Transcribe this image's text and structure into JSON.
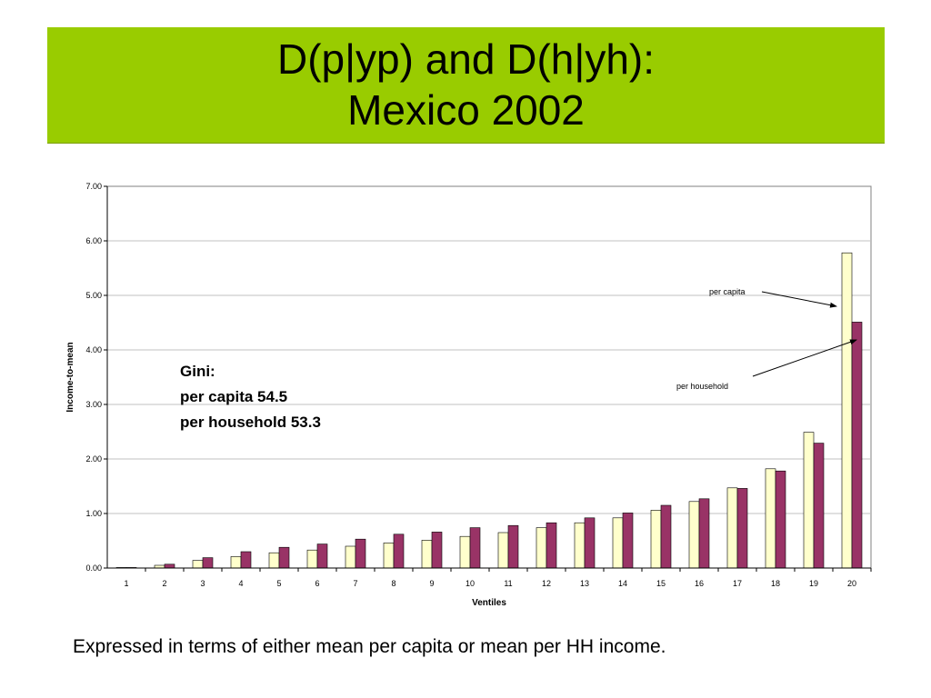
{
  "slide": {
    "title_line1": "D(p|yp) and D(h|yh):",
    "title_line2": "Mexico 2002",
    "caption": "Expressed in terms of either mean per capita or mean per HH income.",
    "colors": {
      "title_bar": "#99cc00"
    }
  },
  "chart_data": {
    "type": "bar",
    "xlabel": "Ventiles",
    "ylabel": "Income-to-mean",
    "ylim": [
      0,
      7
    ],
    "yticks": [
      "0.00",
      "1.00",
      "2.00",
      "3.00",
      "4.00",
      "5.00",
      "6.00",
      "7.00"
    ],
    "categories": [
      "1",
      "2",
      "3",
      "4",
      "5",
      "6",
      "7",
      "8",
      "9",
      "10",
      "11",
      "12",
      "13",
      "14",
      "15",
      "16",
      "17",
      "18",
      "19",
      "20"
    ],
    "grid": true,
    "series": [
      {
        "name": "per capita",
        "color": "#ffffcc",
        "values": [
          0.01,
          0.05,
          0.14,
          0.21,
          0.28,
          0.33,
          0.4,
          0.46,
          0.51,
          0.58,
          0.65,
          0.74,
          0.83,
          0.92,
          1.06,
          1.22,
          1.47,
          1.82,
          2.49,
          5.78
        ]
      },
      {
        "name": "per household",
        "color": "#993366",
        "values": [
          0.01,
          0.07,
          0.19,
          0.3,
          0.38,
          0.44,
          0.53,
          0.62,
          0.66,
          0.74,
          0.78,
          0.83,
          0.92,
          1.01,
          1.15,
          1.27,
          1.46,
          1.78,
          2.29,
          4.51
        ]
      }
    ],
    "annotations": {
      "gini_title": "Gini:",
      "gini_per_capita": "per capita 54.5",
      "gini_per_household": "per household 53.3",
      "label_per_capita": "per capita",
      "label_per_household": "per household"
    }
  }
}
